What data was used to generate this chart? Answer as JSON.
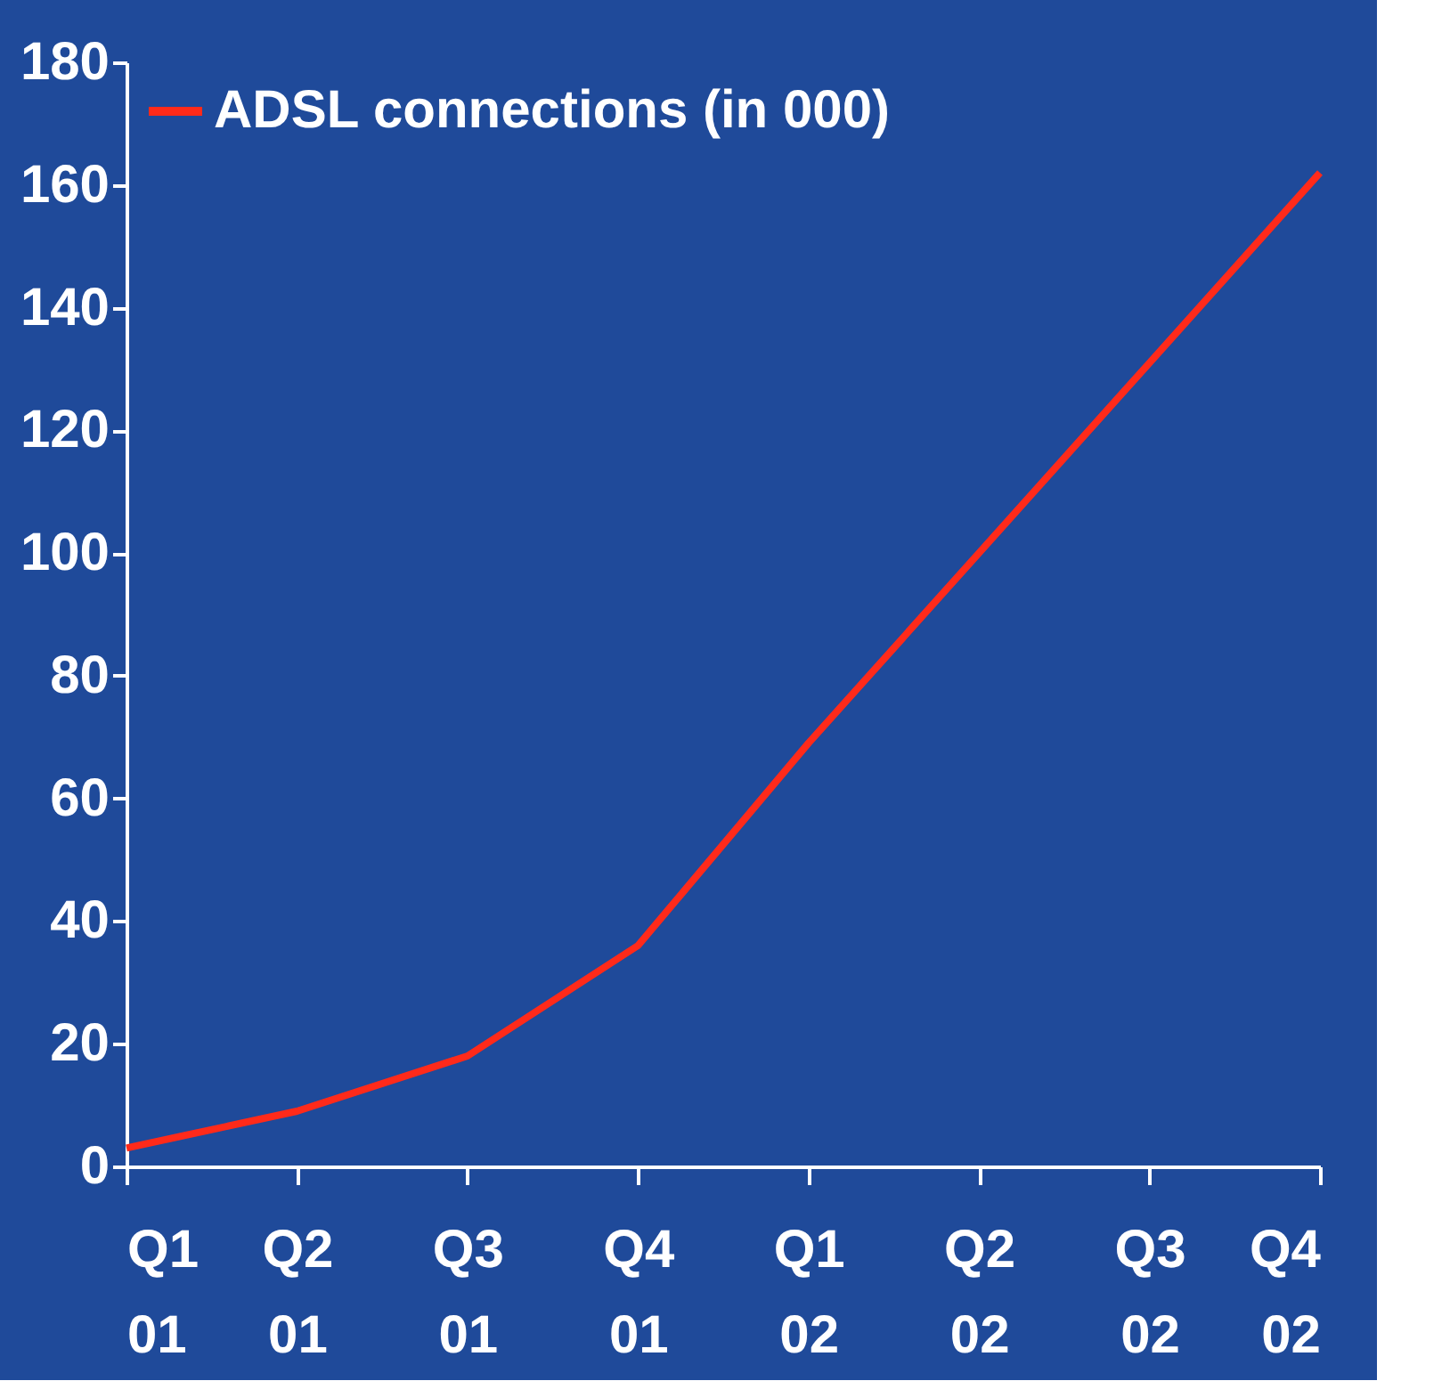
{
  "chart_data": {
    "type": "line",
    "categories": [
      "Q1 01",
      "Q2 01",
      "Q3 01",
      "Q4 01",
      "Q1 02",
      "Q2 02",
      "Q3 02",
      "Q4 02"
    ],
    "series": [
      {
        "name": "ADSL connections (in 000)",
        "color": "#ff2a1a",
        "values": [
          3,
          9,
          18,
          36,
          69,
          100,
          131,
          162
        ]
      }
    ],
    "ylim": [
      0,
      180
    ],
    "yticks": [
      0,
      20,
      40,
      60,
      80,
      100,
      120,
      140,
      160,
      180
    ],
    "grid": false,
    "legend": "top left",
    "marker": "none",
    "line_style": "solid"
  }
}
